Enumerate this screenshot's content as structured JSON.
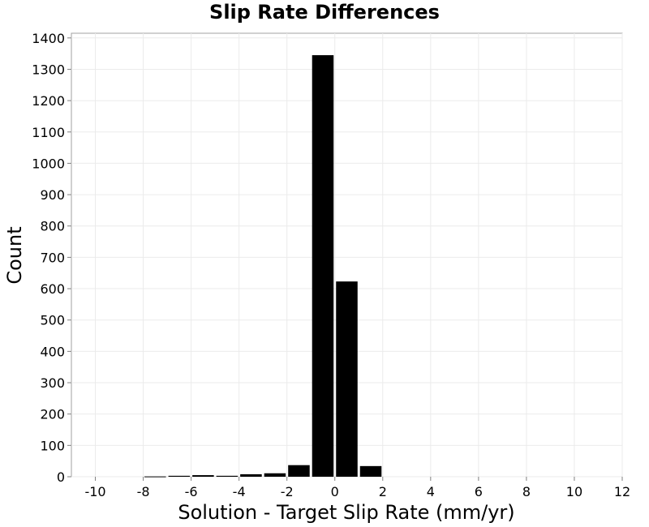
{
  "chart_data": {
    "type": "bar",
    "title": "Slip Rate Differences",
    "xlabel": "Solution - Target Slip Rate (mm/yr)",
    "ylabel": "Count",
    "xlim": [
      -11,
      12
    ],
    "ylim": [
      0,
      1415
    ],
    "xticks": [
      -10,
      -8,
      -6,
      -4,
      -2,
      0,
      2,
      4,
      6,
      8,
      10,
      12
    ],
    "yticks": [
      0,
      100,
      200,
      300,
      400,
      500,
      600,
      700,
      800,
      900,
      1000,
      1100,
      1200,
      1300,
      1400
    ],
    "bin_width": 1,
    "bins": [
      {
        "x": -7.5,
        "value": 1
      },
      {
        "x": -6.5,
        "value": 3
      },
      {
        "x": -5.5,
        "value": 5
      },
      {
        "x": -4.5,
        "value": 3
      },
      {
        "x": -3.5,
        "value": 8
      },
      {
        "x": -2.5,
        "value": 11
      },
      {
        "x": -1.5,
        "value": 37
      },
      {
        "x": -0.5,
        "value": 1345
      },
      {
        "x": 0.5,
        "value": 623
      },
      {
        "x": 1.5,
        "value": 34
      }
    ],
    "bar_color": "#000000",
    "grid": true
  }
}
